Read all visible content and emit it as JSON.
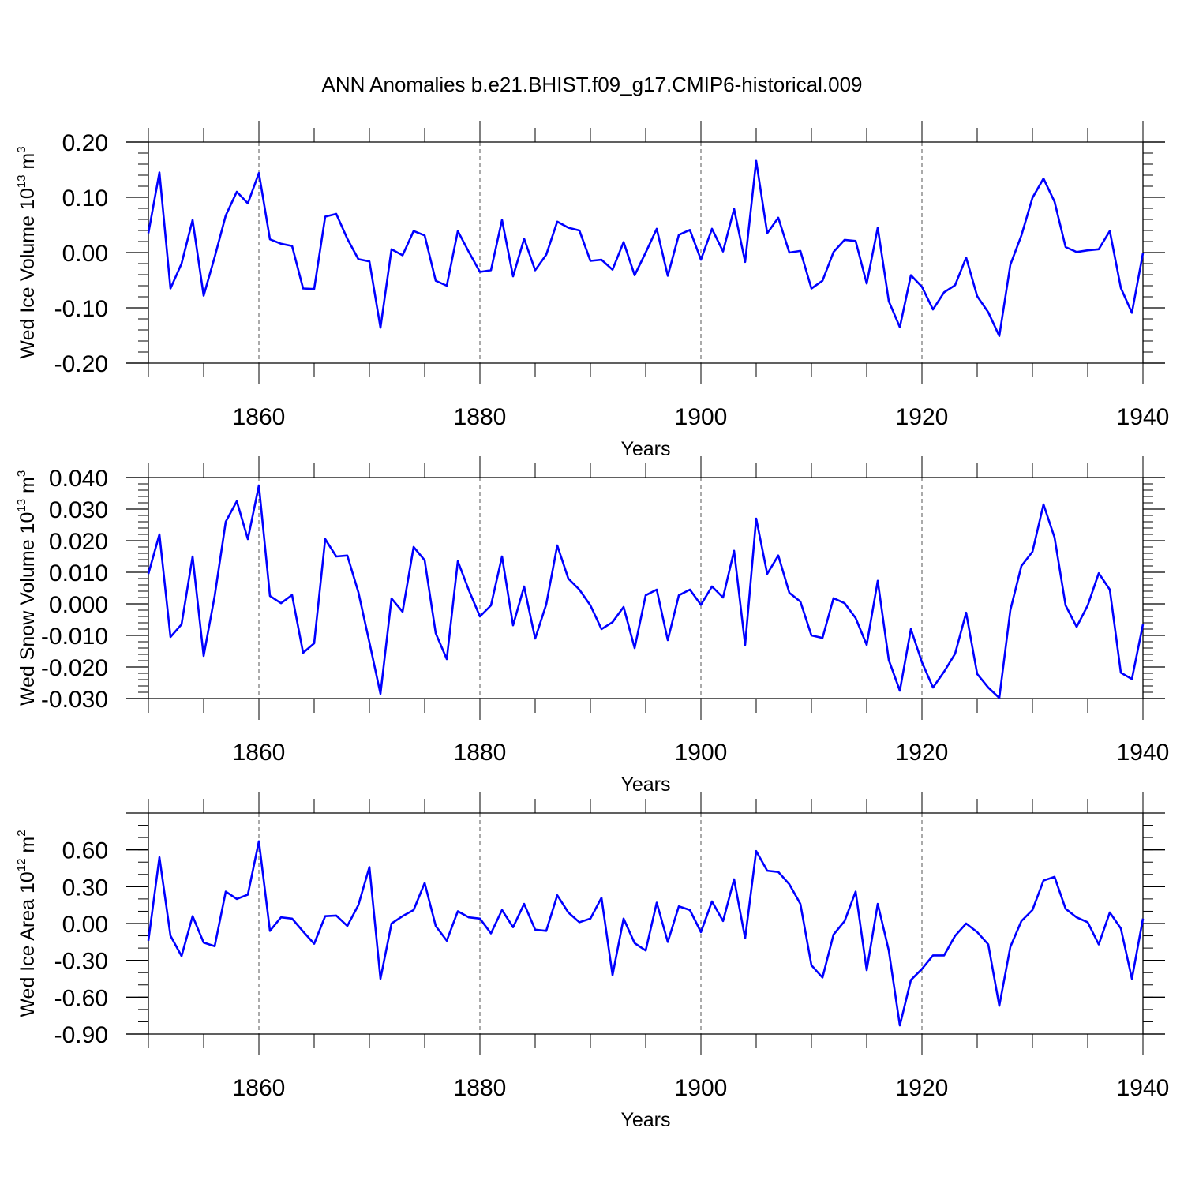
{
  "chart_data": {
    "type": "line",
    "title": "ANN Anomalies b.e21.BHIST.f09_g17.CMIP6-historical.009",
    "series_color": "#0000ff",
    "x": [
      1850,
      1851,
      1852,
      1853,
      1854,
      1855,
      1856,
      1857,
      1858,
      1859,
      1860,
      1861,
      1862,
      1863,
      1864,
      1865,
      1866,
      1867,
      1868,
      1869,
      1870,
      1871,
      1872,
      1873,
      1874,
      1875,
      1876,
      1877,
      1878,
      1879,
      1880,
      1881,
      1882,
      1883,
      1884,
      1885,
      1886,
      1887,
      1888,
      1889,
      1890,
      1891,
      1892,
      1893,
      1894,
      1895,
      1896,
      1897,
      1898,
      1899,
      1900,
      1901,
      1902,
      1903,
      1904,
      1905,
      1906,
      1907,
      1908,
      1909,
      1910,
      1911,
      1912,
      1913,
      1914,
      1915,
      1916,
      1917,
      1918,
      1919,
      1920,
      1921,
      1922,
      1923,
      1924,
      1925,
      1926,
      1927,
      1928,
      1929,
      1930,
      1931,
      1932,
      1933,
      1934,
      1935,
      1936,
      1937,
      1938,
      1939,
      1940
    ],
    "panels": [
      {
        "ylabel_main": "Wed Ice Volume 10",
        "ylabel_exp": "13",
        "ylabel_unit": " m",
        "ylabel_unit_exp": "3",
        "xlabel": "Years",
        "xlim": [
          1850,
          1940
        ],
        "ylim": [
          -0.2,
          0.2
        ],
        "yticks": [
          -0.2,
          -0.1,
          0.0,
          0.1,
          0.2
        ],
        "ytick_labels": [
          "-0.20",
          "-0.10",
          "0.00",
          "0.10",
          "0.20"
        ],
        "minor_step": 0.02,
        "xticks": [
          1860,
          1880,
          1900,
          1920,
          1940
        ],
        "xtick_labels": [
          "1860",
          "1880",
          "1900",
          "1920",
          "1940"
        ],
        "values": [
          0.035,
          0.145,
          -0.065,
          -0.02,
          0.059,
          -0.078,
          -0.008,
          0.067,
          0.11,
          0.089,
          0.144,
          0.024,
          0.016,
          0.012,
          -0.065,
          -0.066,
          0.065,
          0.07,
          0.025,
          -0.012,
          -0.016,
          -0.136,
          0.006,
          -0.005,
          0.039,
          0.031,
          -0.051,
          -0.06,
          0.039,
          0.001,
          -0.035,
          -0.032,
          0.059,
          -0.043,
          0.025,
          -0.032,
          -0.004,
          0.056,
          0.045,
          0.04,
          -0.015,
          -0.013,
          -0.031,
          0.019,
          -0.041,
          0.0,
          0.043,
          -0.042,
          0.032,
          0.041,
          -0.013,
          0.043,
          0.002,
          0.079,
          -0.017,
          0.166,
          0.035,
          0.063,
          0.0,
          0.003,
          -0.065,
          -0.051,
          0.001,
          0.023,
          0.021,
          -0.056,
          0.045,
          -0.088,
          -0.135,
          -0.041,
          -0.062,
          -0.103,
          -0.072,
          -0.059,
          -0.009,
          -0.079,
          -0.108,
          -0.151,
          -0.022,
          0.031,
          0.099,
          0.134,
          0.092,
          0.01,
          0.001,
          0.004,
          0.006,
          0.039,
          -0.064,
          -0.109,
          -0.001
        ]
      },
      {
        "ylabel_main": "Wed Snow Volume 10",
        "ylabel_exp": "13",
        "ylabel_unit": " m",
        "ylabel_unit_exp": "3",
        "xlabel": "Years",
        "xlim": [
          1850,
          1940
        ],
        "ylim": [
          -0.03,
          0.04
        ],
        "yticks": [
          -0.03,
          -0.02,
          -0.01,
          0.0,
          0.01,
          0.02,
          0.03,
          0.04
        ],
        "ytick_labels": [
          "-0.030",
          "-0.020",
          "-0.010",
          "0.000",
          "0.010",
          "0.020",
          "0.030",
          "0.040"
        ],
        "minor_step": 0.002,
        "xticks": [
          1860,
          1880,
          1900,
          1920,
          1940
        ],
        "xtick_labels": [
          "1860",
          "1880",
          "1900",
          "1920",
          "1940"
        ],
        "values": [
          0.0095,
          0.022,
          -0.0105,
          -0.0065,
          0.015,
          -0.0165,
          0.0025,
          0.026,
          0.0325,
          0.0205,
          0.0375,
          0.0025,
          0.0002,
          0.0028,
          -0.0155,
          -0.0125,
          0.0205,
          0.015,
          0.0153,
          0.0037,
          -0.0122,
          -0.0285,
          0.0017,
          -0.0025,
          0.018,
          0.0138,
          -0.0093,
          -0.0175,
          0.0135,
          0.0043,
          -0.004,
          -0.0005,
          0.015,
          -0.0068,
          0.0055,
          -0.011,
          -0.0002,
          0.0185,
          0.008,
          0.0045,
          -0.0005,
          -0.008,
          -0.0058,
          -0.001,
          -0.014,
          0.0027,
          0.0045,
          -0.0115,
          0.0027,
          0.0045,
          -0.0003,
          0.0055,
          0.002,
          0.0168,
          -0.013,
          0.027,
          0.0095,
          0.0153,
          0.0035,
          0.0007,
          -0.01,
          -0.0108,
          0.0018,
          0.0002,
          -0.0045,
          -0.013,
          0.0073,
          -0.0178,
          -0.0275,
          -0.008,
          -0.0185,
          -0.0265,
          -0.0215,
          -0.0158,
          -0.0028,
          -0.0222,
          -0.0265,
          -0.0298,
          -0.002,
          0.012,
          0.0165,
          0.0315,
          0.021,
          -0.0005,
          -0.0073,
          -0.0005,
          0.0097,
          0.0045,
          -0.0218,
          -0.0238,
          -0.0065
        ]
      },
      {
        "ylabel_main": "Wed Ice Area 10",
        "ylabel_exp": "12",
        "ylabel_unit": " m",
        "ylabel_unit_exp": "2",
        "xlabel": "Years",
        "xlim": [
          1850,
          1940
        ],
        "ylim": [
          -0.9,
          0.9
        ],
        "yticks": [
          -0.9,
          -0.6,
          -0.3,
          0.0,
          0.3,
          0.6
        ],
        "ytick_labels": [
          "-0.90",
          "-0.60",
          "-0.30",
          "0.00",
          "0.30",
          "0.60"
        ],
        "minor_step": 0.1,
        "xticks": [
          1860,
          1880,
          1900,
          1920,
          1940
        ],
        "xtick_labels": [
          "1860",
          "1880",
          "1900",
          "1920",
          "1940"
        ],
        "values": [
          -0.14,
          0.54,
          -0.1,
          -0.265,
          0.06,
          -0.155,
          -0.185,
          0.26,
          0.2,
          0.235,
          0.67,
          -0.06,
          0.05,
          0.04,
          -0.065,
          -0.165,
          0.06,
          0.065,
          -0.02,
          0.15,
          0.46,
          -0.45,
          0.0,
          0.06,
          0.11,
          0.33,
          -0.02,
          -0.14,
          0.1,
          0.05,
          0.04,
          -0.08,
          0.11,
          -0.03,
          0.16,
          -0.05,
          -0.06,
          0.23,
          0.09,
          0.01,
          0.04,
          0.21,
          -0.42,
          0.04,
          -0.16,
          -0.22,
          0.17,
          -0.15,
          0.14,
          0.11,
          -0.07,
          0.18,
          0.02,
          0.36,
          -0.12,
          0.59,
          0.43,
          0.42,
          0.32,
          0.16,
          -0.34,
          -0.44,
          -0.09,
          0.02,
          0.26,
          -0.38,
          0.16,
          -0.22,
          -0.83,
          -0.46,
          -0.37,
          -0.26,
          -0.26,
          -0.1,
          0.0,
          -0.07,
          -0.17,
          -0.67,
          -0.19,
          0.02,
          0.11,
          0.35,
          0.38,
          0.12,
          0.05,
          0.01,
          -0.17,
          0.09,
          -0.04,
          -0.45,
          0.04
        ]
      }
    ]
  }
}
